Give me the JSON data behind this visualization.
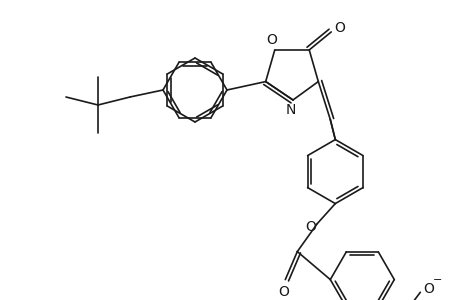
{
  "bg_color": "#ffffff",
  "line_color": "#1a1a1a",
  "line_width": 1.2,
  "figsize": [
    4.6,
    3.0
  ],
  "dpi": 100,
  "xlim": [
    0,
    460
  ],
  "ylim": [
    0,
    300
  ]
}
